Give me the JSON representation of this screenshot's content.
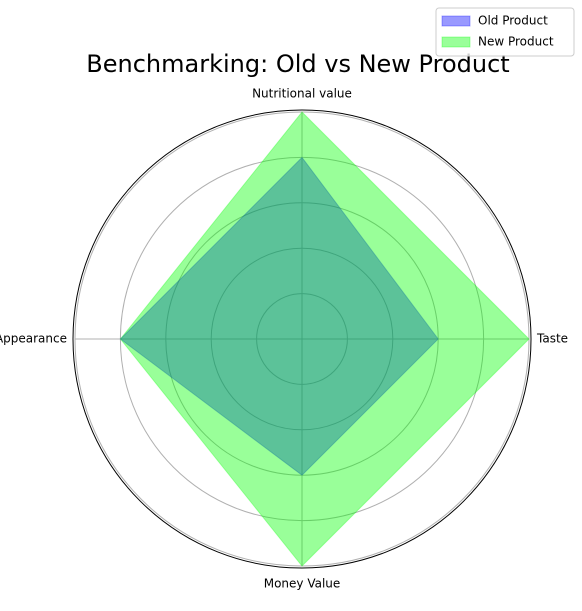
{
  "chart_data": {
    "type": "radar",
    "title": "Benchmarking: Old vs New Product",
    "categories": [
      "Nutritional value",
      "Taste",
      "Money Value",
      "Appearance"
    ],
    "series": [
      {
        "name": "Old Product",
        "color": "#0000ff",
        "values": [
          4,
          3,
          3,
          4
        ]
      },
      {
        "name": "New Product",
        "color": "#00ff00",
        "values": [
          5,
          5,
          5,
          4
        ]
      }
    ],
    "ylim": [
      0,
      5
    ],
    "yticks": [
      1,
      2,
      3,
      4,
      5
    ],
    "grid": true,
    "legend": "upper right"
  }
}
